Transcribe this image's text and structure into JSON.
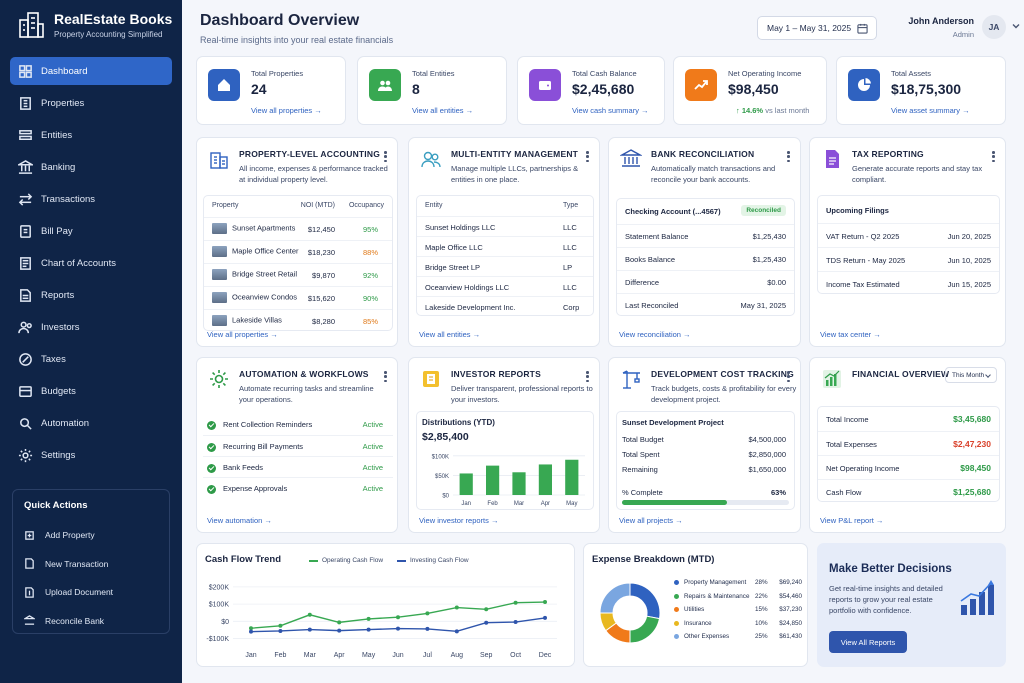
{
  "brand": {
    "title": "RealEstate Books",
    "subtitle": "Property Accounting Simplified"
  },
  "nav": [
    {
      "label": "Dashboard",
      "icon": "grid-icon"
    },
    {
      "label": "Properties",
      "icon": "building-icon"
    },
    {
      "label": "Entities",
      "icon": "entities-icon"
    },
    {
      "label": "Banking",
      "icon": "bank-icon"
    },
    {
      "label": "Transactions",
      "icon": "transactions-icon"
    },
    {
      "label": "Bill Pay",
      "icon": "bill-icon"
    },
    {
      "label": "Chart of Accounts",
      "icon": "accounts-icon"
    },
    {
      "label": "Reports",
      "icon": "reports-icon"
    },
    {
      "label": "Investors",
      "icon": "investors-icon"
    },
    {
      "label": "Taxes",
      "icon": "taxes-icon"
    },
    {
      "label": "Budgets",
      "icon": "budgets-icon"
    },
    {
      "label": "Automation",
      "icon": "automation-icon"
    },
    {
      "label": "Settings",
      "icon": "gear-icon"
    }
  ],
  "quick_actions": {
    "title": "Quick Actions",
    "items": [
      "Add Property",
      "New Transaction",
      "Upload Document",
      "Reconcile Bank"
    ]
  },
  "header": {
    "title": "Dashboard Overview",
    "subtitle": "Real-time insights into your real estate financials",
    "date_range": "May 1 – May 31, 2025",
    "user_name": "John Anderson",
    "user_role": "Admin",
    "user_initials": "JA"
  },
  "stats": [
    {
      "label": "Total Properties",
      "value": "24",
      "link": "View all properties →",
      "color": "#2f62c0"
    },
    {
      "label": "Total Entities",
      "value": "8",
      "link": "View all entities →",
      "color": "#38a852"
    },
    {
      "label": "Total Cash Balance",
      "value": "$2,45,680",
      "link": "View cash summary →",
      "color": "#8a4fd8"
    },
    {
      "label": "Net Operating Income",
      "value": "$98,450",
      "trend": "↑ 14.6%",
      "trend_suffix": "vs last month",
      "color": "#f07a1a"
    },
    {
      "label": "Total Assets",
      "value": "$18,75,300",
      "link": "View asset summary →",
      "color": "#2f62c0"
    }
  ],
  "property_accounting": {
    "title": "PROPERTY-LEVEL ACCOUNTING",
    "desc": "All income, expenses & performance tracked at individual property level.",
    "headers": [
      "Property",
      "NOI (MTD)",
      "Occupancy"
    ],
    "rows": [
      {
        "name": "Sunset Apartments",
        "noi": "$12,450",
        "occ": "95%",
        "occ_color": "green"
      },
      {
        "name": "Maple Office Center",
        "noi": "$18,230",
        "occ": "88%",
        "occ_color": "orange"
      },
      {
        "name": "Bridge Street Retail",
        "noi": "$9,870",
        "occ": "92%",
        "occ_color": "green"
      },
      {
        "name": "Oceanview Condos",
        "noi": "$15,620",
        "occ": "90%",
        "occ_color": "green"
      },
      {
        "name": "Lakeside Villas",
        "noi": "$8,280",
        "occ": "85%",
        "occ_color": "orange"
      }
    ],
    "link": "View all properties →"
  },
  "multi_entity": {
    "title": "MULTI-ENTITY MANAGEMENT",
    "desc": "Manage multiple LLCs, partnerships & entities in one place.",
    "headers": [
      "Entity",
      "Type"
    ],
    "rows": [
      {
        "name": "Sunset Holdings LLC",
        "type": "LLC"
      },
      {
        "name": "Maple Office LLC",
        "type": "LLC"
      },
      {
        "name": "Bridge Street LP",
        "type": "LP"
      },
      {
        "name": "Oceanview Holdings LLC",
        "type": "LLC"
      },
      {
        "name": "Lakeside Development Inc.",
        "type": "Corp"
      }
    ],
    "link": "View all entities →"
  },
  "bank_reconciliation": {
    "title": "BANK RECONCILIATION",
    "desc": "Automatically match transactions and reconcile your bank accounts.",
    "account": "Checking Account (...4567)",
    "status": "Reconciled",
    "rows": [
      {
        "label": "Statement Balance",
        "value": "$1,25,430"
      },
      {
        "label": "Books Balance",
        "value": "$1,25,430"
      },
      {
        "label": "Difference",
        "value": "$0.00"
      },
      {
        "label": "Last Reconciled",
        "value": "May 31, 2025"
      }
    ],
    "link": "View reconciliation →"
  },
  "tax_reporting": {
    "title": "TAX REPORTING",
    "desc": "Generate accurate reports and stay tax compliant.",
    "section": "Upcoming Filings",
    "rows": [
      {
        "label": "VAT Return - Q2 2025",
        "value": "Jun 20, 2025"
      },
      {
        "label": "TDS Return - May 2025",
        "value": "Jun 10, 2025"
      },
      {
        "label": "Income Tax Estimated",
        "value": "Jun 15, 2025"
      }
    ],
    "link": "View tax center →"
  },
  "automation": {
    "title": "AUTOMATION & WORKFLOWS",
    "desc": "Automate recurring tasks and streamline your operations.",
    "rows": [
      {
        "label": "Rent Collection Reminders",
        "status": "Active"
      },
      {
        "label": "Recurring Bill Payments",
        "status": "Active"
      },
      {
        "label": "Bank Feeds",
        "status": "Active"
      },
      {
        "label": "Expense Approvals",
        "status": "Active"
      }
    ],
    "link": "View automation →"
  },
  "investor_reports": {
    "title": "INVESTOR REPORTS",
    "desc": "Deliver transparent, professional reports to your investors.",
    "dist_label": "Distributions (YTD)",
    "dist_value": "$2,85,400",
    "link": "View investor reports →"
  },
  "development": {
    "title": "DEVELOPMENT COST TRACKING",
    "desc": "Track budgets, costs & profitability for every development project.",
    "project": "Sunset Development Project",
    "rows": [
      {
        "label": "Total Budget",
        "value": "$4,500,000"
      },
      {
        "label": "Total Spent",
        "value": "$2,850,000"
      },
      {
        "label": "Remaining",
        "value": "$1,650,000"
      }
    ],
    "complete_label": "% Complete",
    "complete_value": "63%",
    "complete_fraction": 0.63,
    "link": "View all projects →"
  },
  "financial_overview": {
    "title": "FINANCIAL OVERVIEW",
    "period": "This Month",
    "rows": [
      {
        "label": "Total Income",
        "value": "$3,45,680",
        "color": "green"
      },
      {
        "label": "Total Expenses",
        "value": "$2,47,230",
        "color": "red"
      },
      {
        "label": "Net Operating Income",
        "value": "$98,450",
        "color": "green"
      },
      {
        "label": "Cash Flow",
        "value": "$1,25,680",
        "color": "green"
      }
    ],
    "link": "View P&L report →"
  },
  "cash_flow": {
    "title": "Cash Flow Trend"
  },
  "expense": {
    "title": "Expense Breakdown (MTD)",
    "items": [
      {
        "name": "Property Management",
        "pct": "28%",
        "value": "$69,240",
        "color": "#2f62c0"
      },
      {
        "name": "Repairs & Maintenance",
        "pct": "22%",
        "value": "$54,460",
        "color": "#38a852"
      },
      {
        "name": "Utilities",
        "pct": "15%",
        "value": "$37,230",
        "color": "#f07a1a"
      },
      {
        "name": "Insurance",
        "pct": "10%",
        "value": "$24,850",
        "color": "#e8b820"
      },
      {
        "name": "Other Expenses",
        "pct": "25%",
        "value": "$61,430",
        "color": "#7aa6e0"
      }
    ]
  },
  "promo": {
    "title": "Make Better Decisions",
    "text": "Get real-time insights and detailed reports to grow your real estate portfolio with confidence.",
    "button": "View All Reports"
  },
  "chart_data": [
    {
      "type": "bar",
      "categories": [
        "Jan",
        "Feb",
        "Mar",
        "Apr",
        "May"
      ],
      "values": [
        55,
        75,
        58,
        78,
        90
      ],
      "ylabels": [
        "$100K",
        "$50K",
        "$0"
      ],
      "ylim": [
        0,
        120
      ],
      "color": "#38a852"
    },
    {
      "type": "line",
      "title": "Cash Flow Trend",
      "categories": [
        "Jan",
        "Feb",
        "Mar",
        "Apr",
        "May",
        "Jun",
        "Jul",
        "Aug",
        "Sep",
        "Oct",
        "Dec"
      ],
      "series": [
        {
          "name": "Operating Cash Flow",
          "color": "#38a852",
          "values": [
            -20,
            -13,
            19,
            -3,
            7,
            12,
            23,
            40,
            35,
            54,
            56
          ]
        },
        {
          "name": "Investing Cash Flow",
          "color": "#2f55ac",
          "values": [
            -30,
            -28,
            -24,
            -27,
            -24,
            -21,
            -22,
            -29,
            -4,
            -2,
            10
          ]
        }
      ],
      "ylabels": [
        "$200K",
        "$100K",
        "$0",
        "-$100K"
      ],
      "ylim": [
        -60,
        120
      ]
    },
    {
      "type": "pie",
      "title": "Expense Breakdown (MTD)",
      "categories": [
        "Property Management",
        "Repairs & Maintenance",
        "Utilities",
        "Insurance",
        "Other Expenses"
      ],
      "values": [
        28,
        22,
        15,
        10,
        25
      ],
      "colors": [
        "#2f62c0",
        "#38a852",
        "#f07a1a",
        "#e8b820",
        "#7aa6e0"
      ]
    }
  ]
}
